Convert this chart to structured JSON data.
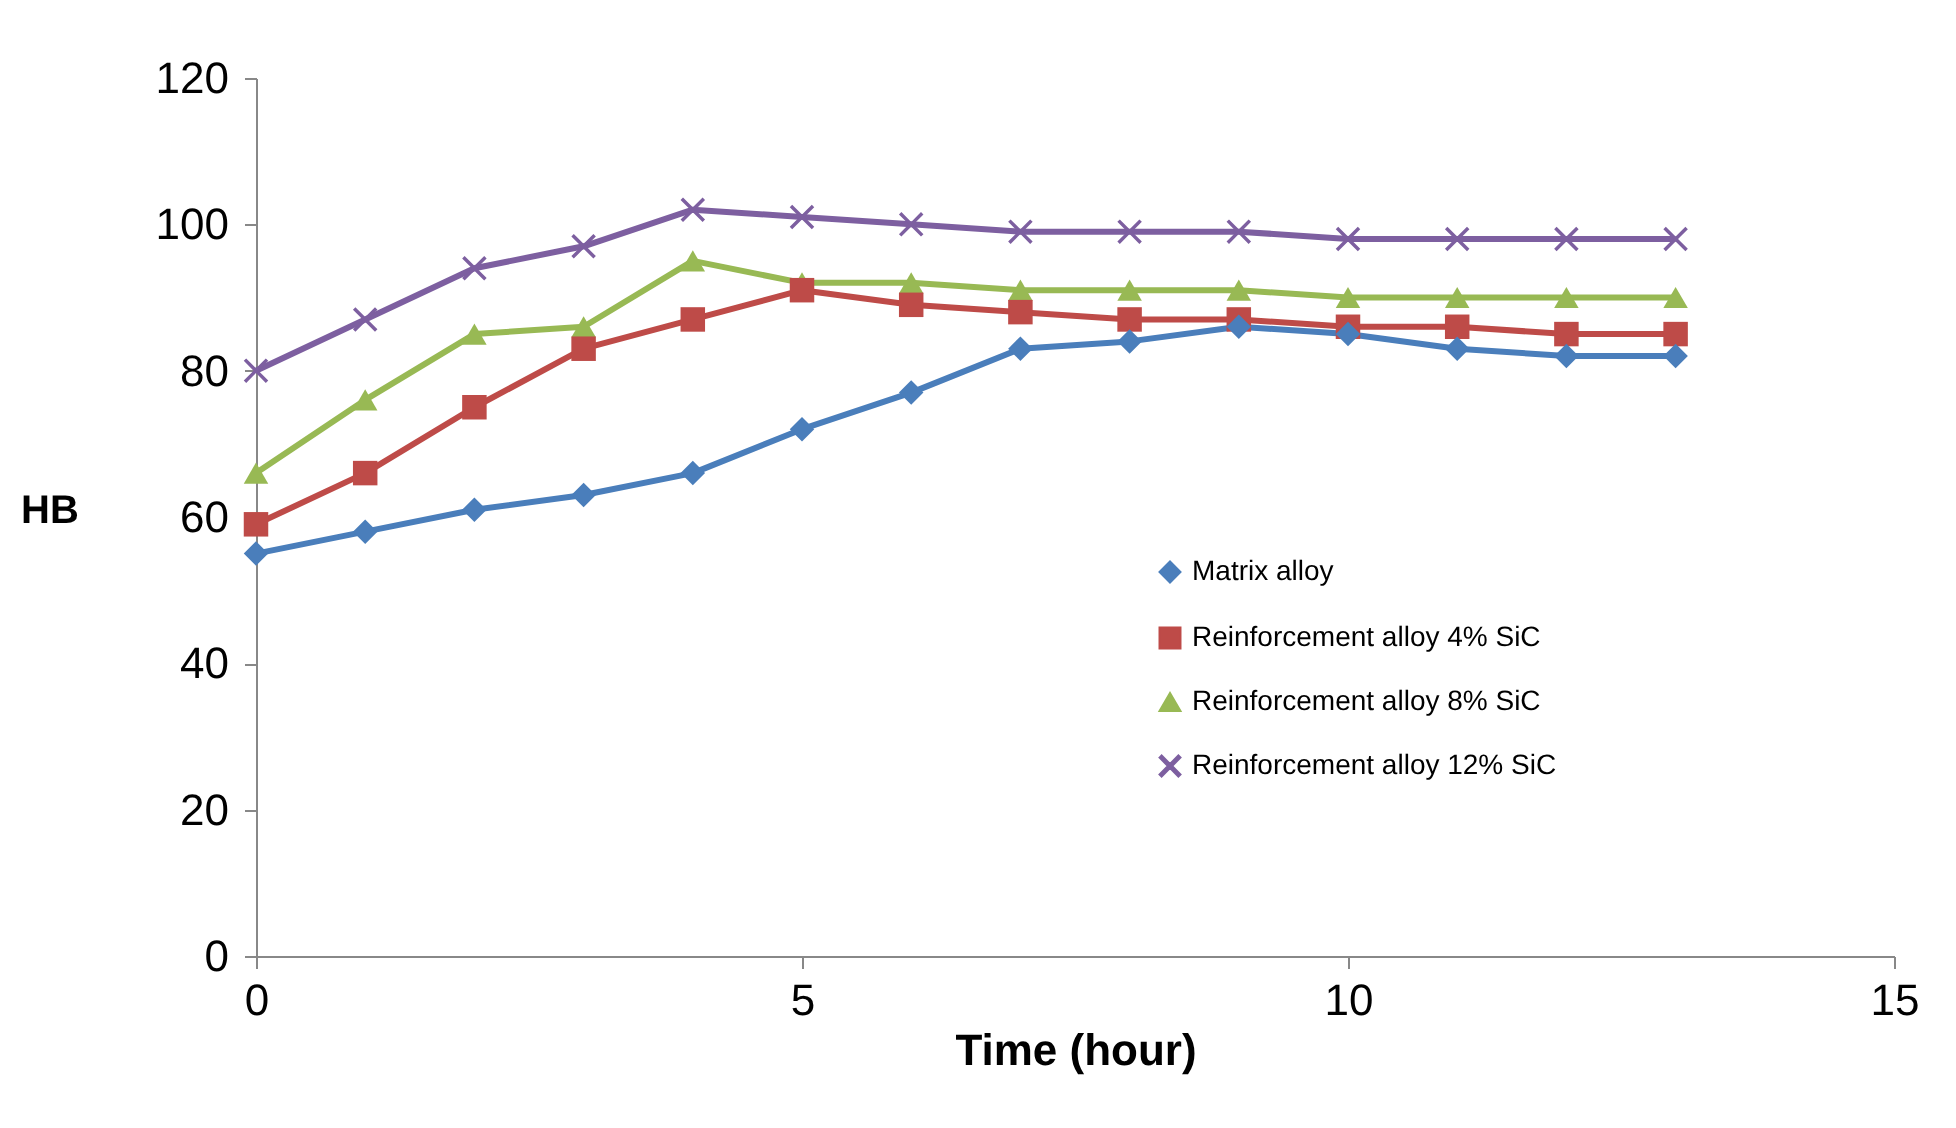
{
  "chart_data": {
    "type": "line",
    "xlabel": "Time (hour)",
    "ylabel": "HB",
    "x": [
      0,
      1,
      2,
      3,
      4,
      5,
      6,
      7,
      8,
      9,
      10,
      11,
      12,
      13
    ],
    "series": [
      {
        "name": "Matrix alloy",
        "color": "#4a7ebb",
        "marker": "diamond",
        "values": [
          55,
          58,
          61,
          63,
          66,
          72,
          77,
          83,
          84,
          86,
          85,
          83,
          82,
          82
        ]
      },
      {
        "name": "Reinforcement alloy 4% SiC",
        "color": "#be4b48",
        "marker": "square",
        "values": [
          59,
          66,
          75,
          83,
          87,
          91,
          89,
          88,
          87,
          87,
          86,
          86,
          85,
          85
        ]
      },
      {
        "name": "Reinforcement alloy 8% SiC",
        "color": "#98b954",
        "marker": "triangle",
        "values": [
          66,
          76,
          85,
          86,
          95,
          92,
          92,
          91,
          91,
          91,
          90,
          90,
          90,
          90
        ]
      },
      {
        "name": "Reinforcement alloy 12% SiC",
        "color": "#7d5fa0",
        "marker": "cross",
        "values": [
          80,
          87,
          94,
          97,
          102,
          101,
          100,
          99,
          99,
          99,
          98,
          98,
          98,
          98
        ]
      }
    ],
    "xlim": [
      0,
      15
    ],
    "xticks": [
      0,
      5,
      10,
      15
    ],
    "ylim": [
      0,
      120
    ],
    "yticks": [
      0,
      20,
      40,
      60,
      80,
      100,
      120
    ],
    "grid": false,
    "legend": "right",
    "line_style": "solid"
  }
}
